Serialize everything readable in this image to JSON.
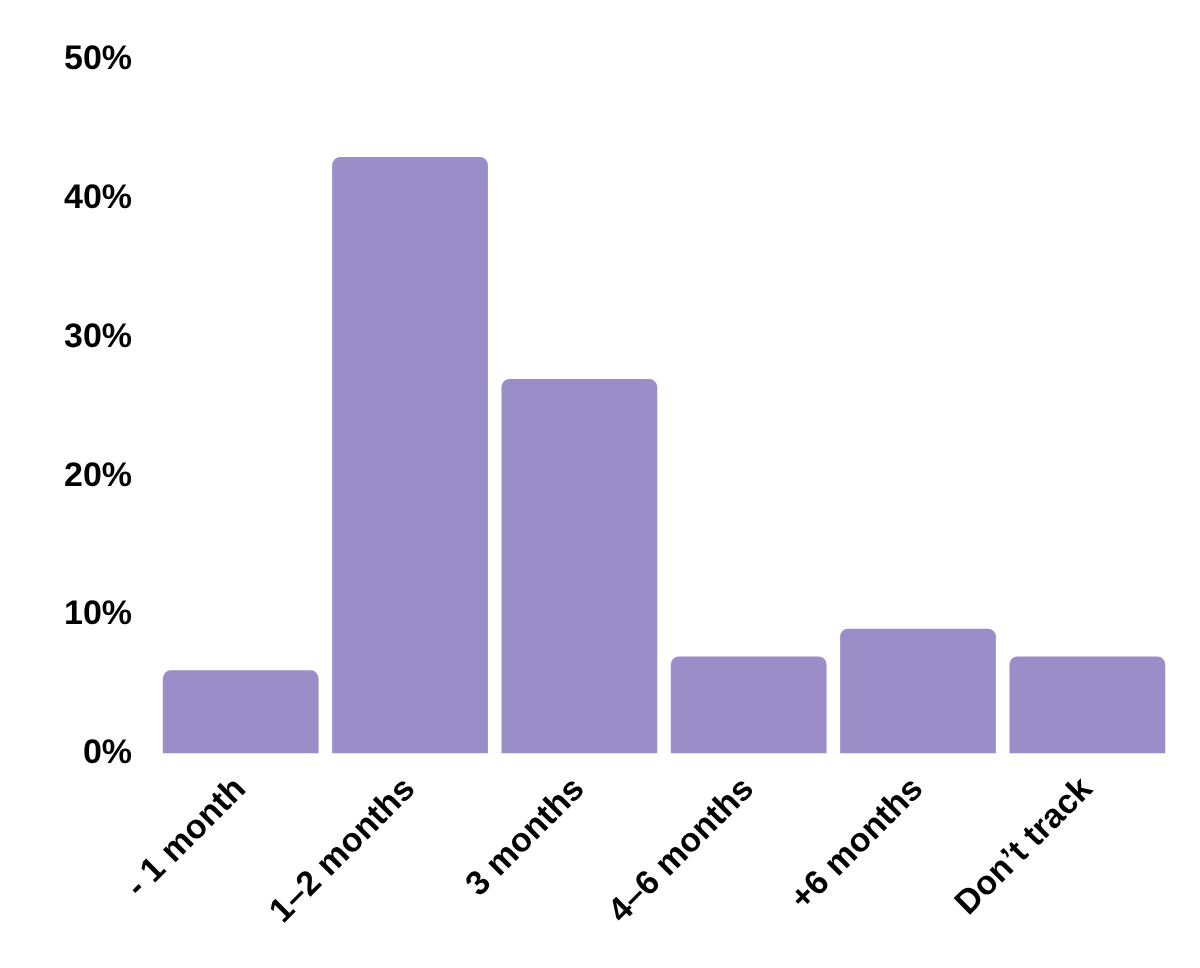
{
  "chart_data": {
    "type": "bar",
    "categories": [
      "- 1 month",
      "1–2 months",
      "3 months",
      "4–6 months",
      "+6 months",
      "Don’t track"
    ],
    "values": [
      6,
      43,
      27,
      7,
      9,
      7
    ],
    "color": "#9b8dc8",
    "ylim": [
      0,
      50
    ],
    "yticks": [
      {
        "value": 0,
        "label": "0%"
      },
      {
        "value": 10,
        "label": "10%"
      },
      {
        "value": 20,
        "label": "20%"
      },
      {
        "value": 30,
        "label": "30%"
      },
      {
        "value": 40,
        "label": "40%"
      },
      {
        "value": 50,
        "label": "50%"
      }
    ],
    "grid": false,
    "legend": false
  }
}
